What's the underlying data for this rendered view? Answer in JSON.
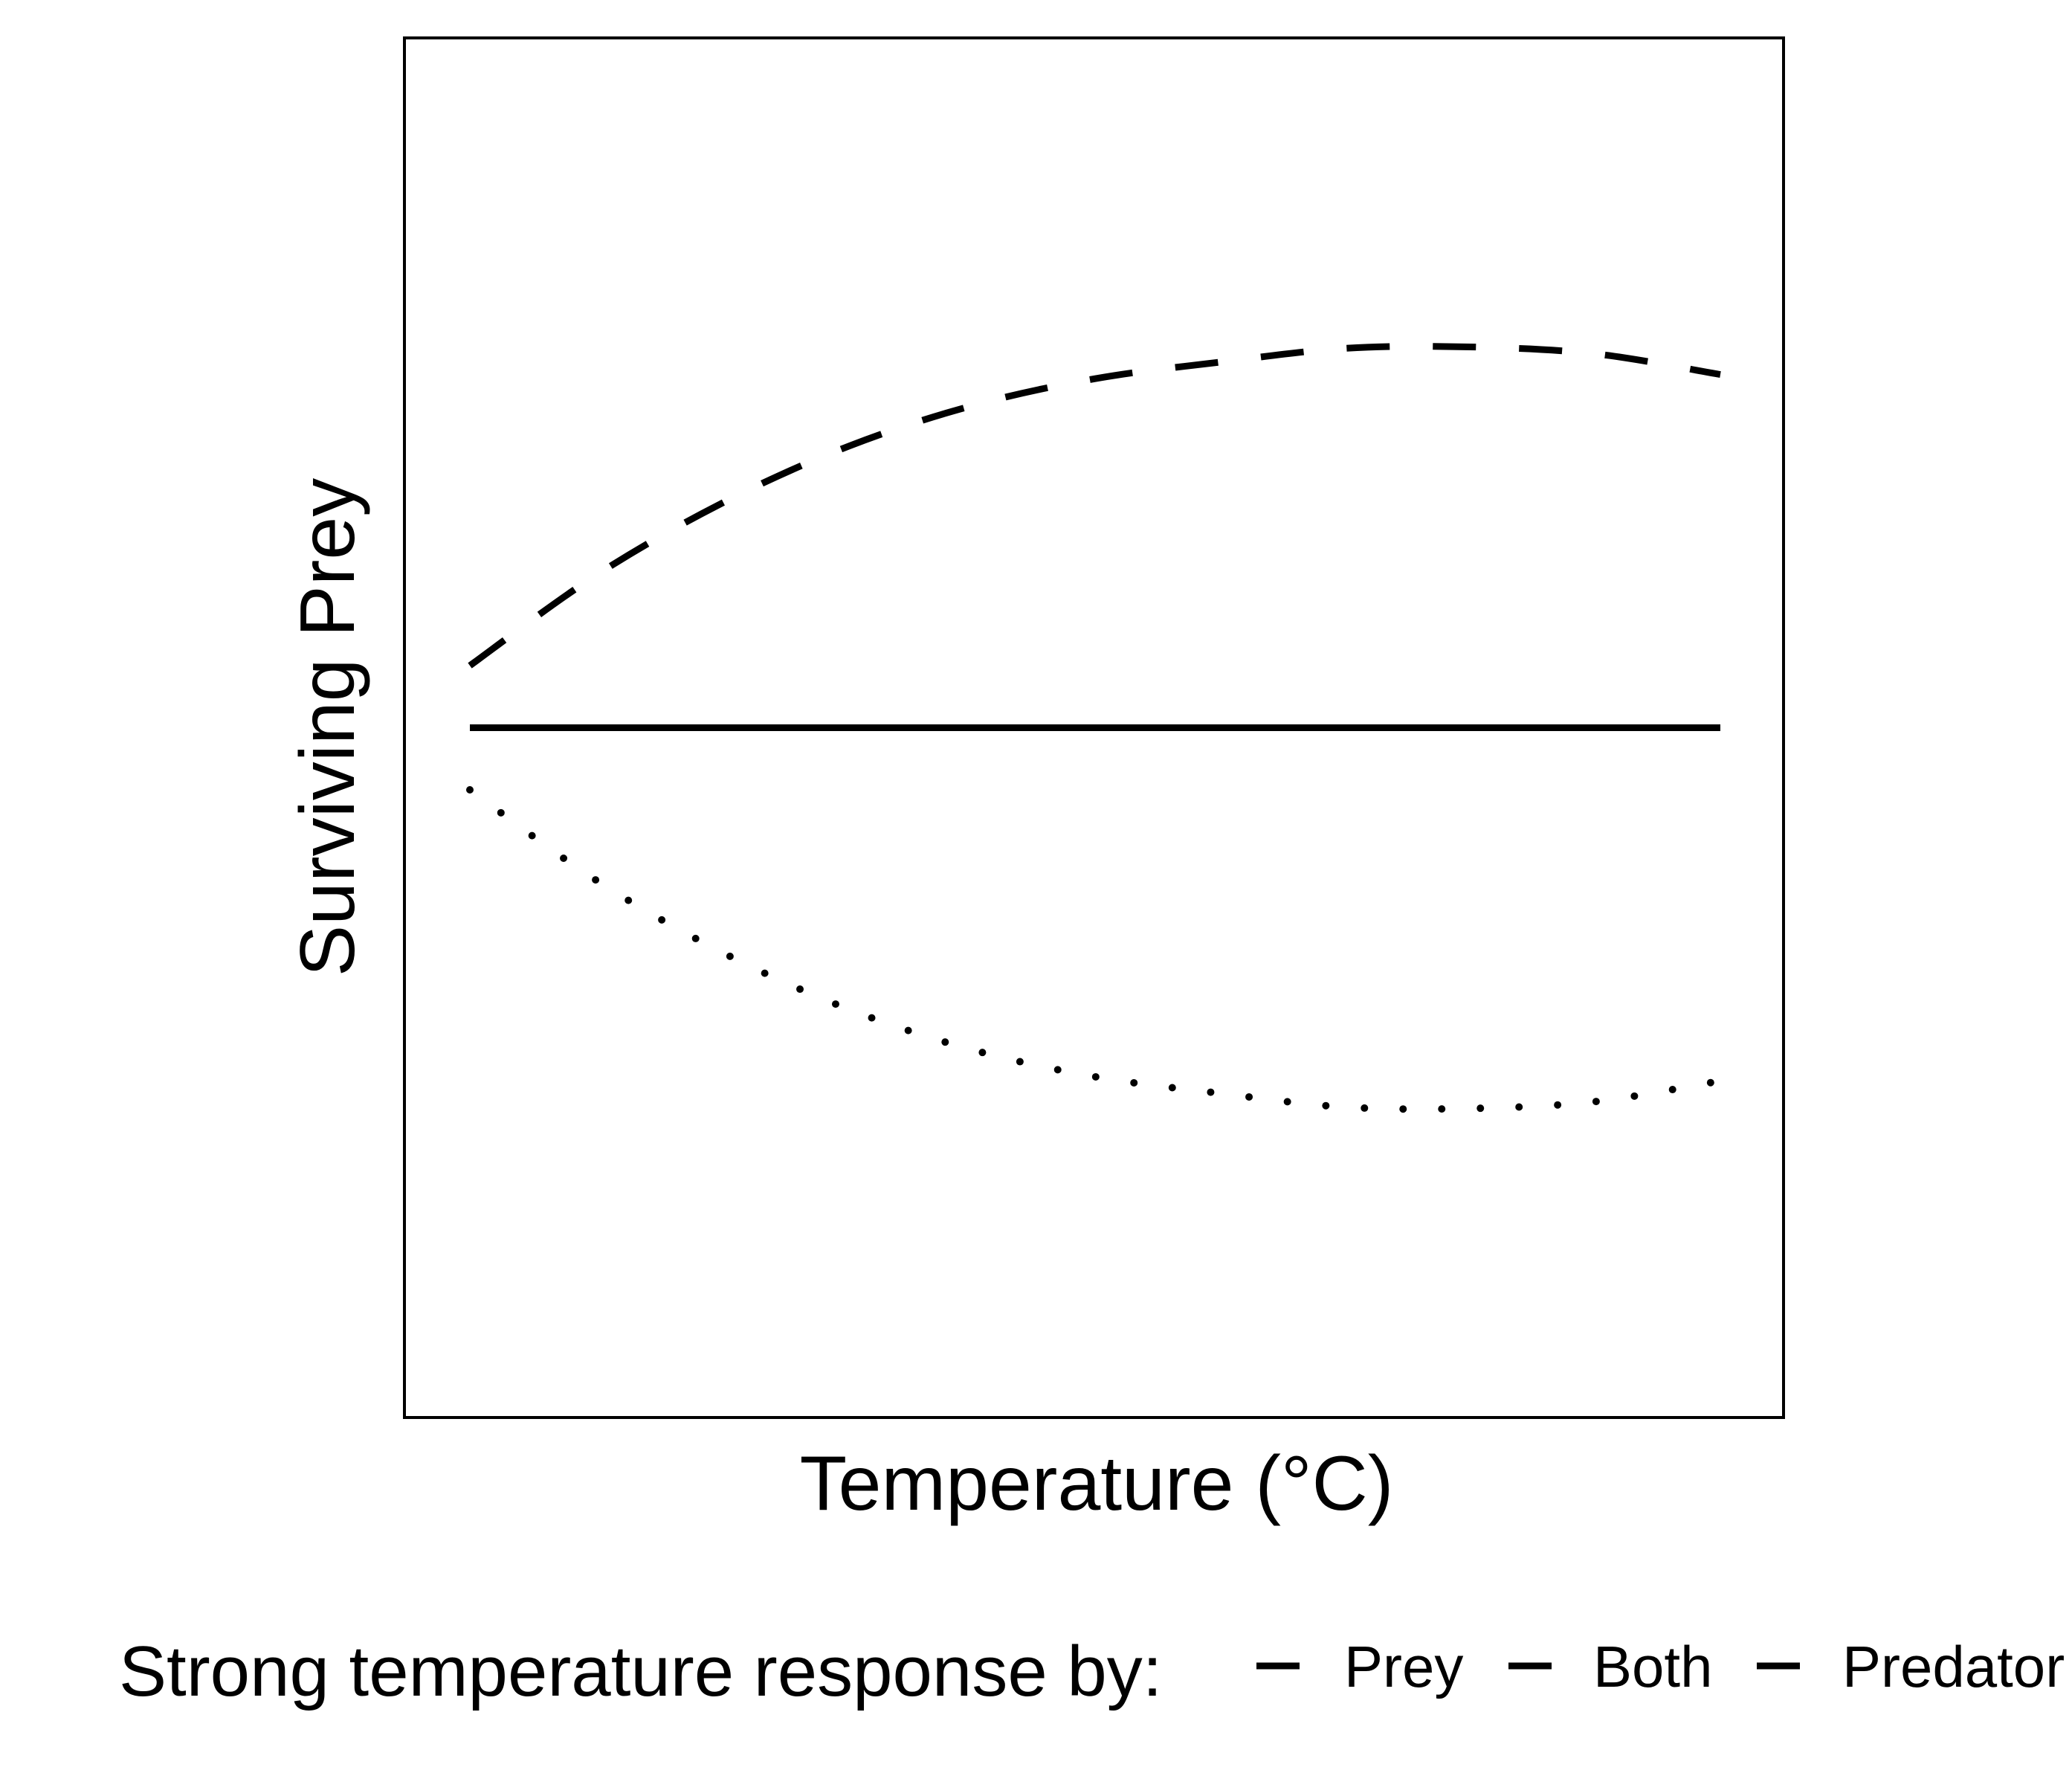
{
  "chart_data": {
    "type": "line",
    "title": "",
    "xlabel": "Temperature (°C)",
    "ylabel": "Surviving Prey",
    "xlim": [
      0,
      1
    ],
    "ylim": [
      0,
      1
    ],
    "x_ticks_shown": false,
    "y_ticks_shown": false,
    "grid": false,
    "legend": {
      "placement": "bottom",
      "title": "Strong temperature response by:",
      "entries": [
        "Prey",
        "Both",
        "Predator"
      ]
    },
    "x": [
      0.0,
      0.1,
      0.2,
      0.3,
      0.4,
      0.5,
      0.6,
      0.7,
      0.8,
      0.9,
      1.0
    ],
    "series": [
      {
        "name": "Prey",
        "line_style": "dashed",
        "color": "#000000",
        "values": [
          0.545,
          0.61,
          0.662,
          0.703,
          0.733,
          0.753,
          0.765,
          0.775,
          0.776,
          0.771,
          0.756
        ]
      },
      {
        "name": "Both",
        "line_style": "solid",
        "color": "#000000",
        "values": [
          0.5,
          0.5,
          0.5,
          0.5,
          0.5,
          0.5,
          0.5,
          0.5,
          0.5,
          0.5,
          0.5
        ]
      },
      {
        "name": "Predator",
        "line_style": "dotted",
        "color": "#000000",
        "values": [
          0.455,
          0.39,
          0.338,
          0.297,
          0.267,
          0.247,
          0.235,
          0.225,
          0.224,
          0.229,
          0.244
        ]
      }
    ]
  }
}
